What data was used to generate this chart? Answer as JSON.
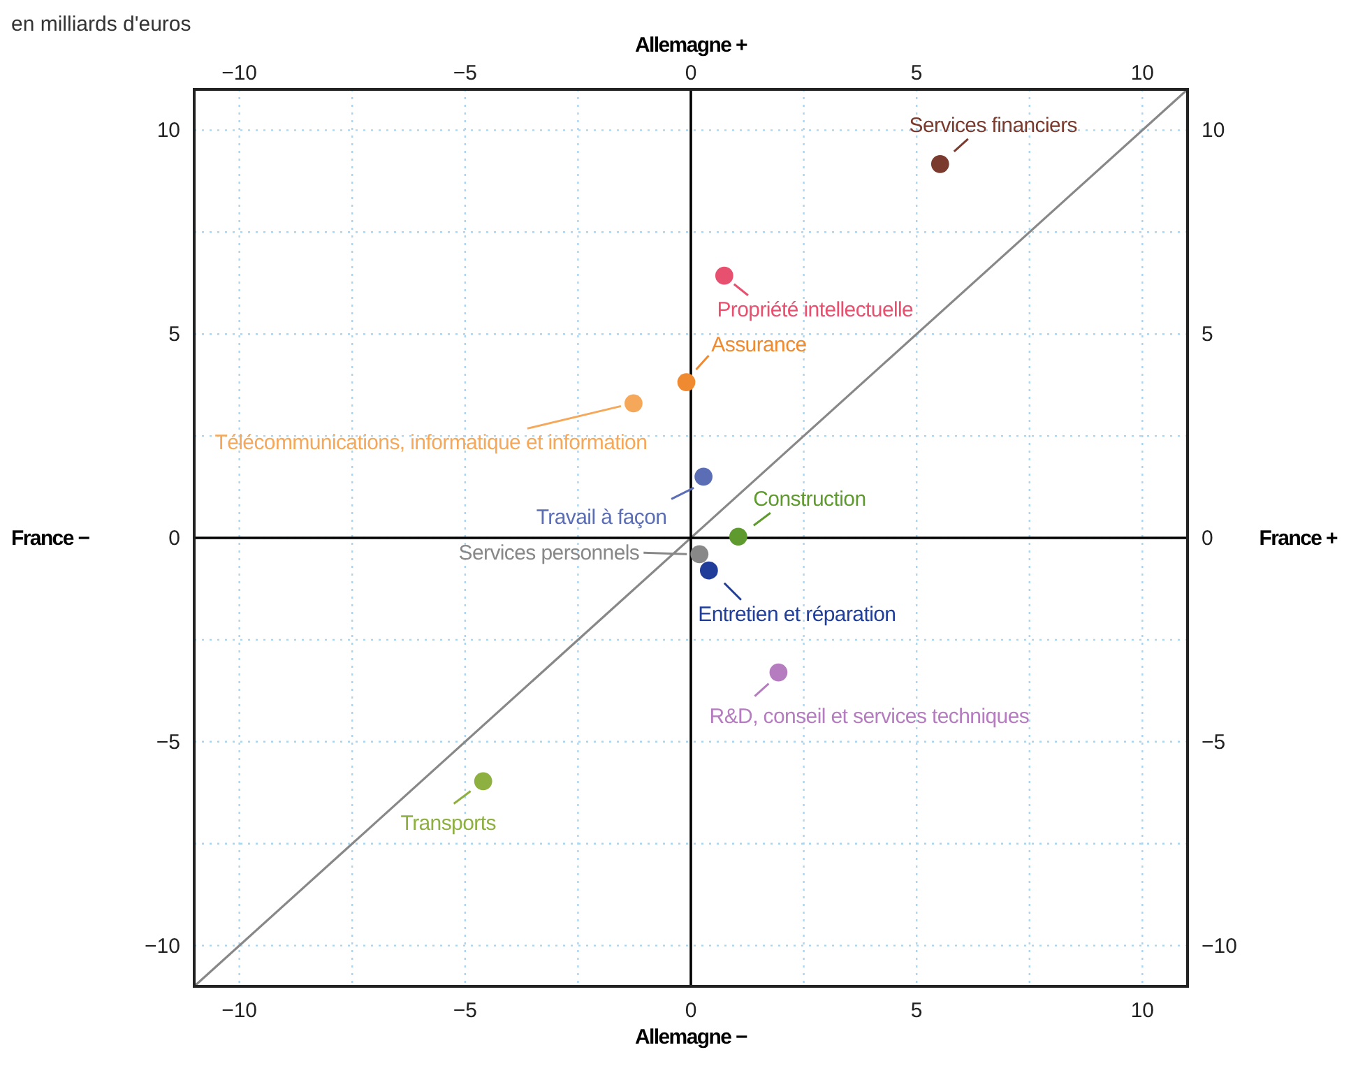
{
  "chart_data": {
    "type": "scatter",
    "subtitle": "en milliards d'euros",
    "xlabel": "Allemagne −",
    "x2label": "Allemagne +",
    "ylabel": "France −",
    "y2label": "France +",
    "xlim": [
      -11,
      11
    ],
    "ylim": [
      -11,
      11
    ],
    "x2lim": [
      -11,
      11
    ],
    "y2lim": [
      -11,
      11
    ],
    "xticks": [
      {
        "value": -10,
        "label": "−10"
      },
      {
        "value": -7.5,
        "label": null
      },
      {
        "value": -5,
        "label": "−5"
      },
      {
        "value": -2.5,
        "label": null
      },
      0,
      {
        "value": 2.5,
        "label": null
      },
      5,
      {
        "value": 7.5,
        "label": null
      },
      10
    ],
    "x2ticks": [
      {
        "value": -10,
        "label": "−10"
      },
      {
        "value": -5,
        "label": "−5"
      },
      0,
      5,
      10
    ],
    "yticks": [
      {
        "value": -10,
        "label": "−10"
      },
      {
        "value": -7.5,
        "label": null
      },
      {
        "value": -5,
        "label": "−5"
      },
      {
        "value": -2.5,
        "label": null
      },
      0,
      {
        "value": 2.5,
        "label": null
      },
      5,
      {
        "value": 7.5,
        "label": null
      },
      10
    ],
    "y2ticks": [
      {
        "value": -10,
        "label": "−10"
      },
      {
        "value": -5,
        "label": "−5"
      },
      0,
      5,
      10
    ],
    "grid": true,
    "series": [
      {
        "marker": "circle",
        "x": [
          5.52,
          0.74,
          -0.1,
          -1.27,
          0.28,
          1.05,
          0.19,
          0.4,
          1.94,
          -4.6
        ],
        "values": [
          9.17,
          6.43,
          3.82,
          3.3,
          1.5,
          0.03,
          -0.4,
          -0.8,
          -3.3,
          -5.97
        ],
        "colors": [
          "#7b3a2e",
          "#e8506f",
          "#f08a30",
          "#f5a85a",
          "#5b6db5",
          "#5e9a2e",
          "#888888",
          "#1f3d99",
          "#b57cc0",
          "#8db040"
        ]
      },
      {
        "type": "line",
        "x": [
          -11,
          11
        ],
        "values": [
          -11,
          11
        ],
        "color": "#888888"
      },
      {
        "type": "line",
        "x": [
          0,
          0
        ],
        "values": [
          -11,
          11
        ],
        "color": "#000000"
      },
      {
        "type": "line",
        "x": [
          -11,
          11
        ],
        "values": [
          0,
          0
        ],
        "color": "#000000"
      }
    ],
    "annotations": [
      {
        "text": "Services financiers",
        "x": 5.52,
        "y": 9.17
      },
      {
        "text": "Propriété intellectuelle",
        "x": 0.74,
        "y": 6.43
      },
      {
        "text": "Assurance",
        "x": -0.1,
        "y": 3.82
      },
      {
        "text": "Télécommunications, informatique et information",
        "x": -1.27,
        "y": 3.3
      },
      {
        "text": "Travail à façon",
        "x": 0.28,
        "y": 1.5
      },
      {
        "text": "Construction",
        "x": 1.05,
        "y": 0.03
      },
      {
        "text": "Services personnels",
        "x": 0.19,
        "y": -0.4
      },
      {
        "text": "Entretien et réparation",
        "x": 0.4,
        "y": -0.8
      },
      {
        "text": "R&D, conseil et services techniques",
        "x": 1.94,
        "y": -3.3
      },
      {
        "text": "Transports",
        "x": -4.6,
        "y": -5.97
      }
    ]
  }
}
